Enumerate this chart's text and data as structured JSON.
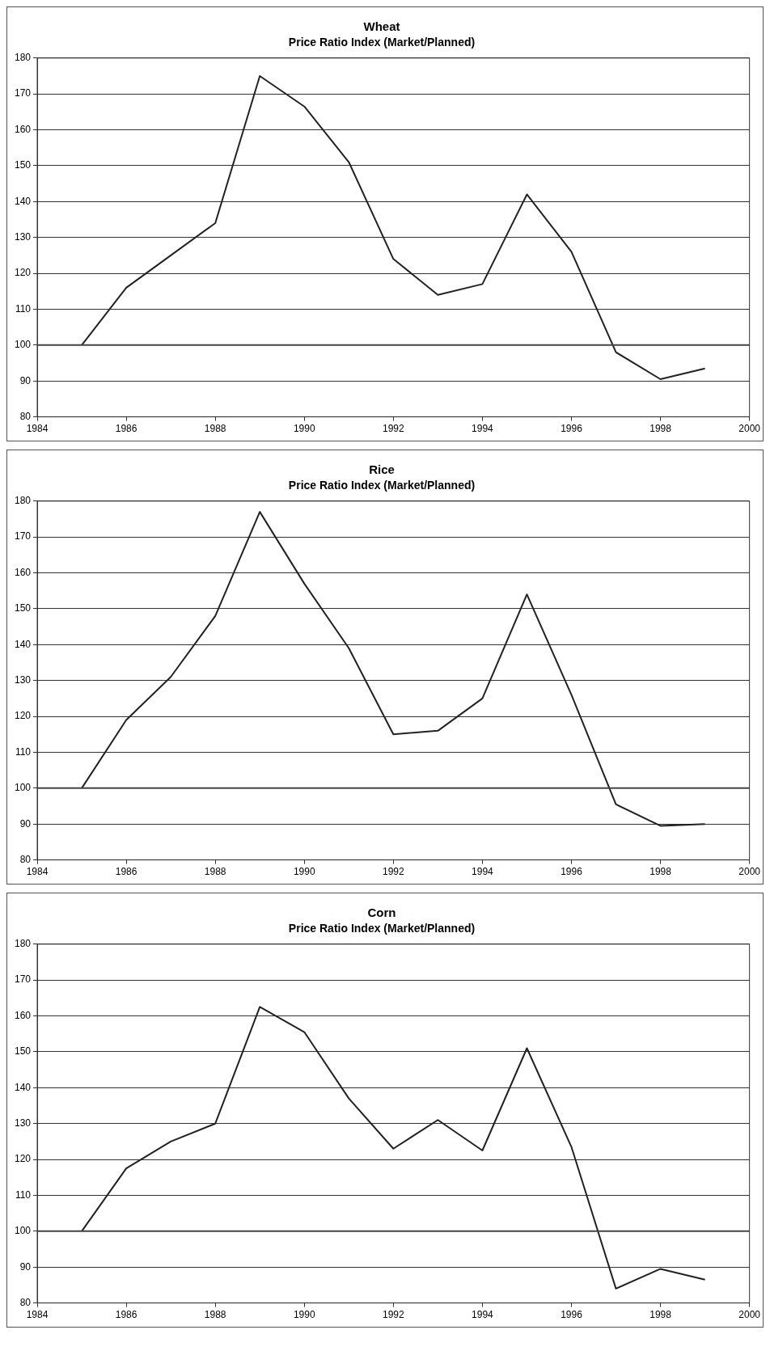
{
  "chart_data": [
    {
      "type": "line",
      "title": "Wheat",
      "subtitle": "Price Ratio Index (Market/Planned)",
      "x": [
        1985,
        1986,
        1987,
        1988,
        1989,
        1990,
        1991,
        1992,
        1993,
        1994,
        1995,
        1996,
        1997,
        1998,
        1999
      ],
      "series": [
        {
          "color": "#222222",
          "values": [
            100,
            116,
            125,
            134,
            175,
            166.5,
            151,
            124,
            114,
            117,
            142,
            126,
            98,
            90.5,
            93.5
          ]
        }
      ],
      "xlim": [
        1984,
        2000
      ],
      "xticks": [
        1984,
        1986,
        1988,
        1990,
        1992,
        1994,
        1996,
        1998,
        2000
      ],
      "ylim": [
        80,
        180
      ],
      "yticks": [
        80,
        90,
        100,
        110,
        120,
        130,
        140,
        150,
        160,
        170,
        180
      ],
      "grid": "y",
      "marker": "none",
      "line_style": "solid",
      "ref_lines": [
        {
          "axis": "y",
          "value": 100,
          "color": "#444444"
        }
      ]
    },
    {
      "type": "line",
      "title": "Rice",
      "subtitle": "Price Ratio Index (Market/Planned)",
      "x": [
        1985,
        1986,
        1987,
        1988,
        1989,
        1990,
        1991,
        1992,
        1993,
        1994,
        1995,
        1996,
        1997,
        1998,
        1999
      ],
      "series": [
        {
          "color": "#222222",
          "values": [
            100,
            119,
            131,
            148,
            177,
            157,
            139,
            115,
            116,
            125,
            154,
            126,
            95.5,
            89.5,
            90
          ]
        }
      ],
      "xlim": [
        1984,
        2000
      ],
      "xticks": [
        1984,
        1986,
        1988,
        1990,
        1992,
        1994,
        1996,
        1998,
        2000
      ],
      "ylim": [
        80,
        180
      ],
      "yticks": [
        80,
        90,
        100,
        110,
        120,
        130,
        140,
        150,
        160,
        170,
        180
      ],
      "grid": "y",
      "marker": "none",
      "line_style": "solid",
      "ref_lines": [
        {
          "axis": "y",
          "value": 100,
          "color": "#444444"
        }
      ]
    },
    {
      "type": "line",
      "title": "Corn",
      "subtitle": "Price Ratio Index (Market/Planned)",
      "x": [
        1985,
        1986,
        1987,
        1988,
        1989,
        1990,
        1991,
        1992,
        1993,
        1994,
        1995,
        1996,
        1997,
        1998,
        1999
      ],
      "series": [
        {
          "color": "#222222",
          "values": [
            100,
            117.5,
            125,
            130,
            162.5,
            155.5,
            137,
            123,
            131,
            122.5,
            151,
            123.5,
            84,
            89.5,
            86.5
          ]
        }
      ],
      "xlim": [
        1984,
        2000
      ],
      "xticks": [
        1984,
        1986,
        1988,
        1990,
        1992,
        1994,
        1996,
        1998,
        2000
      ],
      "ylim": [
        80,
        180
      ],
      "yticks": [
        80,
        90,
        100,
        110,
        120,
        130,
        140,
        150,
        160,
        170,
        180
      ],
      "grid": "y",
      "marker": "none",
      "line_style": "solid",
      "ref_lines": [
        {
          "axis": "y",
          "value": 100,
          "color": "#444444"
        }
      ]
    }
  ]
}
